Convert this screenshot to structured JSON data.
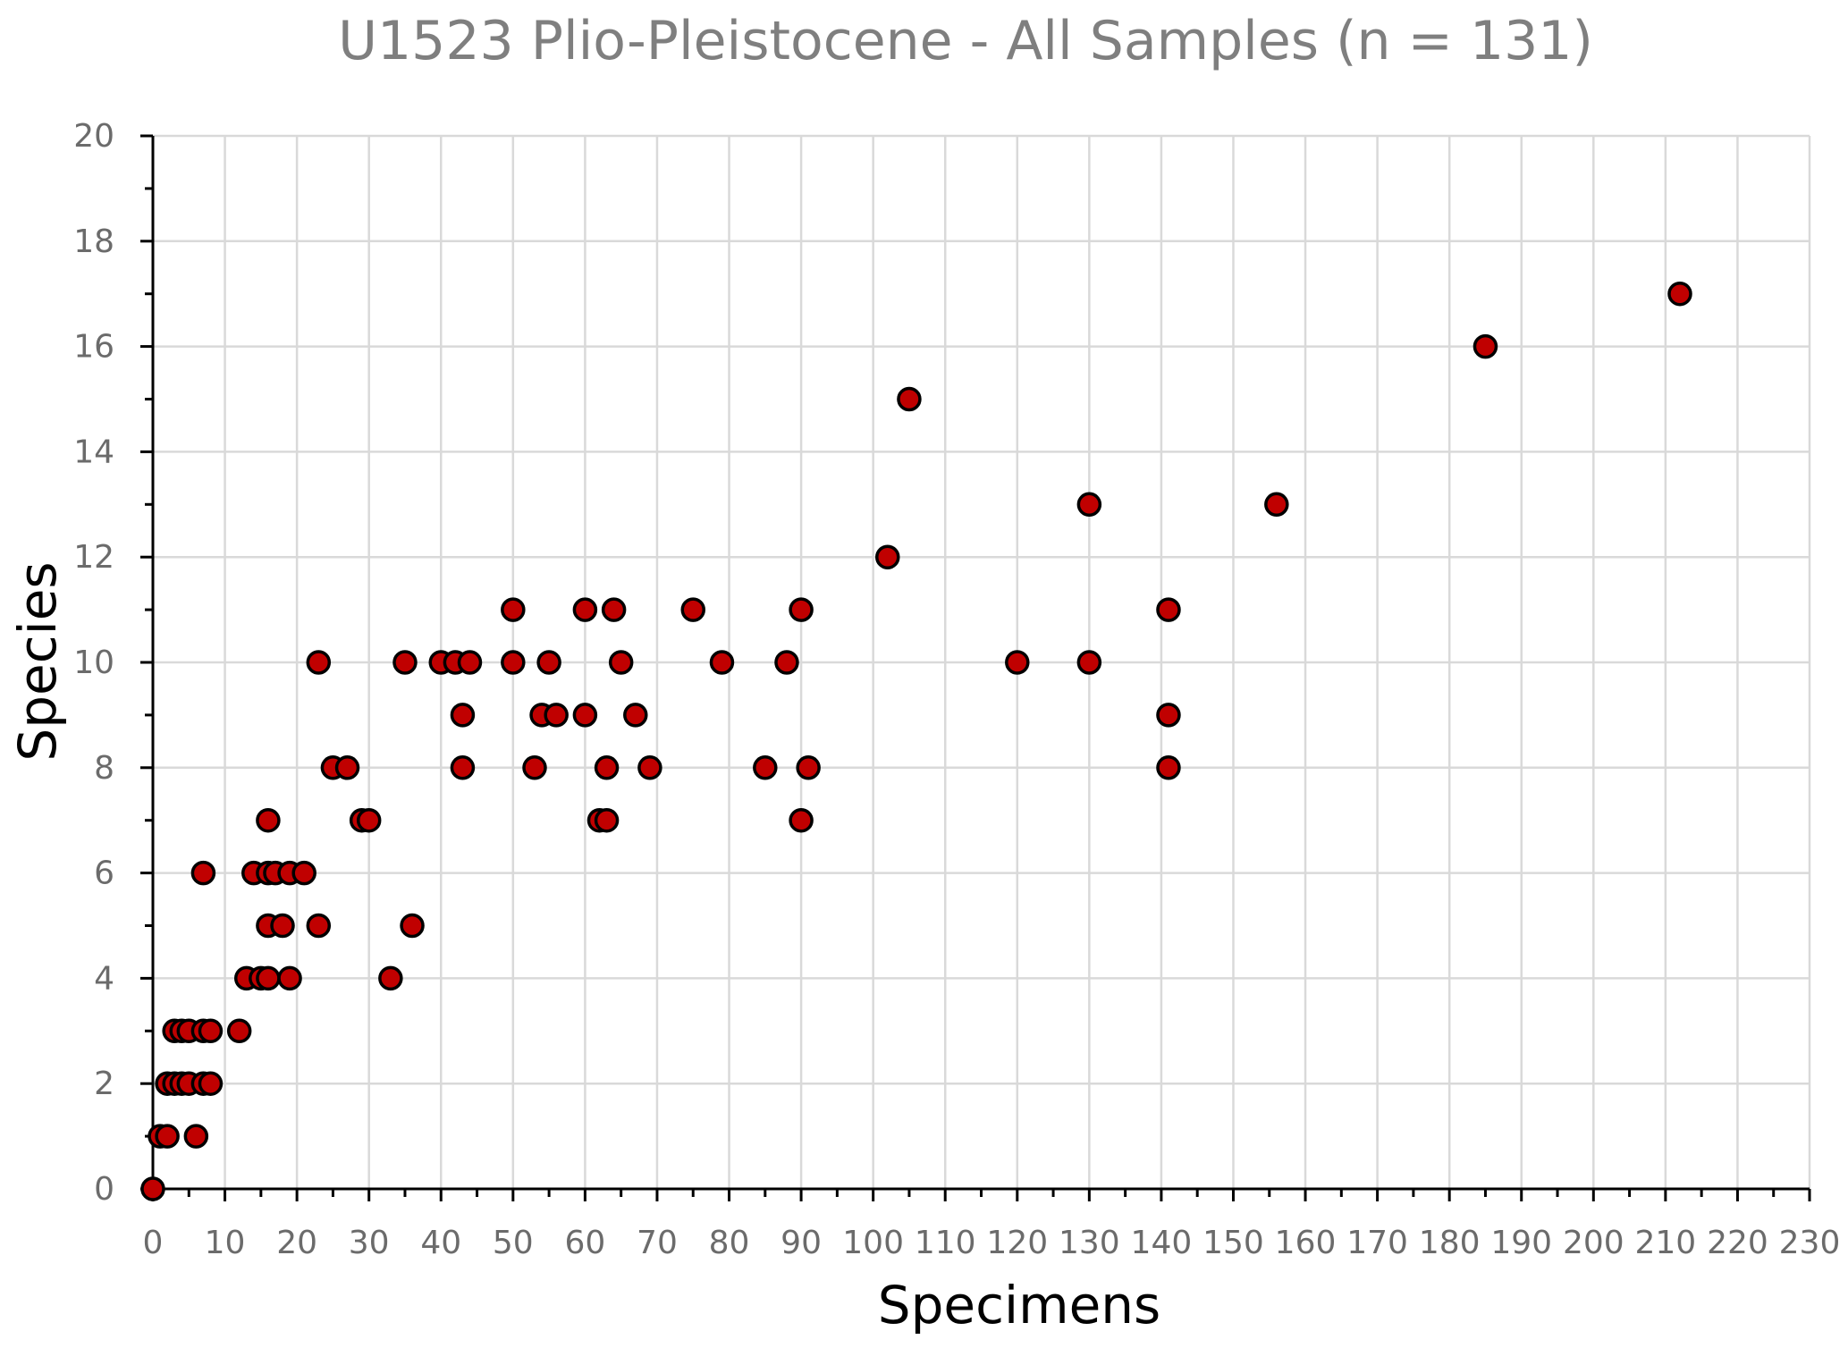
{
  "chart_data": {
    "type": "scatter",
    "title": "U1523 Plio-Pleistocene - All Samples (n = 131)",
    "xlabel": "Specimens",
    "ylabel": "Species",
    "xlim": [
      0,
      230
    ],
    "ylim": [
      0,
      20
    ],
    "x_major": 10,
    "x_minor": 5,
    "y_major": 2,
    "y_minor": 1,
    "grid": true,
    "marker_color": "#c00000",
    "marker_edge": "#000000",
    "x_ticks": [
      "0",
      "10",
      "20",
      "30",
      "40",
      "50",
      "60",
      "70",
      "80",
      "90",
      "100",
      "110",
      "120",
      "130",
      "140",
      "150",
      "160",
      "170",
      "180",
      "190",
      "200",
      "210",
      "220",
      "230"
    ],
    "y_ticks": [
      "0",
      "2",
      "4",
      "6",
      "8",
      "10",
      "12",
      "14",
      "16",
      "18",
      "20"
    ],
    "points": [
      [
        0,
        0
      ],
      [
        1,
        1
      ],
      [
        2,
        1
      ],
      [
        6,
        1
      ],
      [
        2,
        2
      ],
      [
        3,
        2
      ],
      [
        4,
        2
      ],
      [
        5,
        2
      ],
      [
        7,
        2
      ],
      [
        8,
        2
      ],
      [
        3,
        3
      ],
      [
        4,
        3
      ],
      [
        5,
        3
      ],
      [
        7,
        3
      ],
      [
        8,
        3
      ],
      [
        12,
        3
      ],
      [
        13,
        4
      ],
      [
        15,
        4
      ],
      [
        16,
        4
      ],
      [
        19,
        4
      ],
      [
        33,
        4
      ],
      [
        16,
        5
      ],
      [
        18,
        5
      ],
      [
        23,
        5
      ],
      [
        36,
        5
      ],
      [
        7,
        6
      ],
      [
        14,
        6
      ],
      [
        16,
        6
      ],
      [
        17,
        6
      ],
      [
        19,
        6
      ],
      [
        21,
        6
      ],
      [
        16,
        7
      ],
      [
        29,
        7
      ],
      [
        30,
        7
      ],
      [
        62,
        7
      ],
      [
        63,
        7
      ],
      [
        90,
        7
      ],
      [
        25,
        8
      ],
      [
        27,
        8
      ],
      [
        43,
        8
      ],
      [
        53,
        8
      ],
      [
        63,
        8
      ],
      [
        69,
        8
      ],
      [
        85,
        8
      ],
      [
        91,
        8
      ],
      [
        141,
        8
      ],
      [
        43,
        9
      ],
      [
        54,
        9
      ],
      [
        56,
        9
      ],
      [
        60,
        9
      ],
      [
        67,
        9
      ],
      [
        141,
        9
      ],
      [
        23,
        10
      ],
      [
        35,
        10
      ],
      [
        40,
        10
      ],
      [
        42,
        10
      ],
      [
        44,
        10
      ],
      [
        50,
        10
      ],
      [
        55,
        10
      ],
      [
        65,
        10
      ],
      [
        79,
        10
      ],
      [
        88,
        10
      ],
      [
        120,
        10
      ],
      [
        130,
        10
      ],
      [
        50,
        11
      ],
      [
        60,
        11
      ],
      [
        64,
        11
      ],
      [
        75,
        11
      ],
      [
        90,
        11
      ],
      [
        141,
        11
      ],
      [
        102,
        12
      ],
      [
        130,
        13
      ],
      [
        156,
        13
      ],
      [
        105,
        15
      ],
      [
        185,
        16
      ],
      [
        212,
        17
      ]
    ]
  }
}
